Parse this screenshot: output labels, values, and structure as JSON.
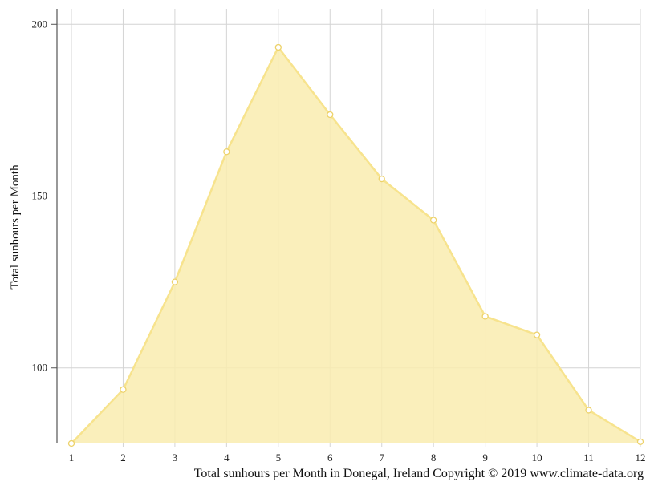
{
  "chart_data": {
    "type": "area",
    "title": "",
    "caption": "Total sunhours per Month in Donegal, Ireland Copyright © 2019 www.climate-data.org",
    "xlabel": "",
    "ylabel": "Total sunhours per Month",
    "x": [
      1,
      2,
      3,
      4,
      5,
      6,
      7,
      8,
      9,
      10,
      11,
      12
    ],
    "series": [
      {
        "values": [
          78,
          93.7,
          125,
          162.9,
          193.3,
          173.7,
          155,
          143,
          115,
          109.6,
          87.7,
          78.5
        ]
      }
    ],
    "yticks": [
      100,
      150,
      200
    ],
    "ylim": [
      78,
      204.5
    ],
    "xlim": [
      1,
      12
    ],
    "grid": true,
    "colors": {
      "fill": "#f9ecaf",
      "line": "#f7e38d",
      "marker_stroke": "#edd26a",
      "grid": "#d4d4d4",
      "axis": "#555555"
    }
  }
}
